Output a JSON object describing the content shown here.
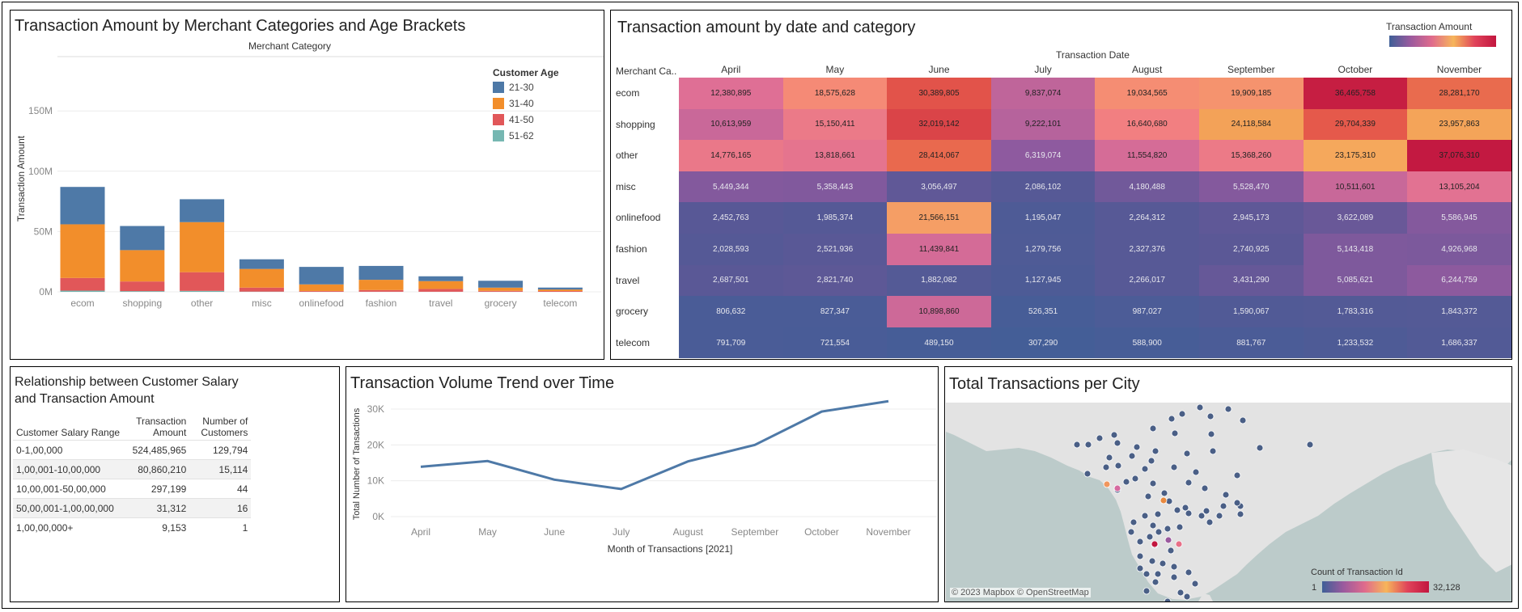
{
  "stacked_chart": {
    "title": "Transaction Amount by Merchant Categories and Age Brackets",
    "col_header": "Merchant Category",
    "ylabel": "Transaction Amount",
    "legend_title": "Customer Age",
    "y_ticks": [
      "0M",
      "50M",
      "100M",
      "150M"
    ]
  },
  "heatmap": {
    "title": "Transaction amount by date and category",
    "col_header": "Transaction Date",
    "row_header": "Merchant Ca..",
    "legend_title": "Transaction Amount",
    "months": [
      "April",
      "May",
      "June",
      "July",
      "August",
      "September",
      "October",
      "November"
    ],
    "rows": [
      {
        "category": "ecom",
        "values": [
          "12,380,895",
          "18,575,628",
          "30,389,805",
          "9,837,074",
          "19,034,565",
          "19,909,185",
          "36,465,758",
          "28,281,170"
        ]
      },
      {
        "category": "shopping",
        "values": [
          "10,613,959",
          "15,150,411",
          "32,019,142",
          "9,222,101",
          "16,640,680",
          "24,118,584",
          "29,704,339",
          "23,957,863"
        ]
      },
      {
        "category": "other",
        "values": [
          "14,776,165",
          "13,818,661",
          "28,414,067",
          "6,319,074",
          "11,554,820",
          "15,368,260",
          "23,175,310",
          "37,076,310"
        ]
      },
      {
        "category": "misc",
        "values": [
          "5,449,344",
          "5,358,443",
          "3,056,497",
          "2,086,102",
          "4,180,488",
          "5,528,470",
          "10,511,601",
          "13,105,204"
        ]
      },
      {
        "category": "onlinefood",
        "values": [
          "2,452,763",
          "1,985,374",
          "21,566,151",
          "1,195,047",
          "2,264,312",
          "2,945,173",
          "3,622,089",
          "5,586,945"
        ]
      },
      {
        "category": "fashion",
        "values": [
          "2,028,593",
          "2,521,936",
          "11,439,841",
          "1,279,756",
          "2,327,376",
          "2,740,925",
          "5,143,418",
          "4,926,968"
        ]
      },
      {
        "category": "travel",
        "values": [
          "2,687,501",
          "2,821,740",
          "1,882,082",
          "1,127,945",
          "2,266,017",
          "3,431,290",
          "5,085,621",
          "6,244,759"
        ]
      },
      {
        "category": "grocery",
        "values": [
          "806,632",
          "827,347",
          "10,898,860",
          "526,351",
          "987,027",
          "1,590,067",
          "1,783,316",
          "1,843,372"
        ]
      },
      {
        "category": "telecom",
        "values": [
          "791,709",
          "721,554",
          "489,150",
          "307,290",
          "588,900",
          "881,767",
          "1,233,532",
          "1,686,337"
        ]
      }
    ],
    "colors": {
      "low": "#3e5f97",
      "mid1": "#9b5a9e",
      "mid2": "#e06b8c",
      "mid3": "#f7845f",
      "high": "#c2163f",
      "yellow": "#f6b55b"
    }
  },
  "salary_table": {
    "title_line1": "Relationship between Customer Salary",
    "title_line2": "and Transaction Amount",
    "headers": {
      "range": "Customer Salary Range",
      "amount_line1": "Transaction",
      "amount_line2": "Amount",
      "customers_line1": "Number of",
      "customers_line2": "Customers"
    },
    "rows": [
      {
        "range": "0-1,00,000",
        "amount": "524,485,965",
        "customers": "129,794"
      },
      {
        "range": "1,00,001-10,00,000",
        "amount": "80,860,210",
        "customers": "15,114"
      },
      {
        "range": "10,00,001-50,00,000",
        "amount": "297,199",
        "customers": "44"
      },
      {
        "range": "50,00,001-1,00,00,000",
        "amount": "31,312",
        "customers": "16"
      },
      {
        "range": "1,00,00,000+",
        "amount": "9,153",
        "customers": "1"
      }
    ]
  },
  "line_chart": {
    "title": "Transaction Volume Trend over Time",
    "xlabel": "Month of Transactions [2021]",
    "ylabel": "Total Number of Tansactions",
    "y_ticks": [
      "0K",
      "10K",
      "20K",
      "30K"
    ]
  },
  "map": {
    "title": "Total Transactions per City",
    "attribution": "© 2023 Mapbox © OpenStreetMap",
    "legend_title": "Count of Transaction Id",
    "legend_min": "1",
    "legend_max": "32,128"
  },
  "chart_data": [
    {
      "type": "bar",
      "stacked": true,
      "title": "Transaction Amount by Merchant Categories and Age Brackets",
      "xlabel": "Merchant Category",
      "ylabel": "Transaction Amount",
      "categories": [
        "ecom",
        "shopping",
        "other",
        "misc",
        "onlinefood",
        "fashion",
        "travel",
        "grocery",
        "telecom"
      ],
      "ylim": [
        0,
        185
      ],
      "units": "M",
      "series": [
        {
          "name": "51-62",
          "color": "#76b7b2",
          "values": [
            1,
            0.6,
            0.8,
            0.2,
            0.1,
            0.1,
            0.1,
            0.1,
            0.05
          ]
        },
        {
          "name": "41-50",
          "color": "#e15759",
          "values": [
            10.5,
            8,
            15.5,
            3.3,
            0.6,
            1.4,
            2.3,
            0.7,
            0.6
          ]
        },
        {
          "name": "31-40",
          "color": "#f28e2b",
          "values": [
            44.5,
            26,
            41.5,
            15.5,
            5.5,
            8.5,
            6.5,
            2.7,
            1.3
          ]
        },
        {
          "name": "21-30",
          "color": "#4e79a7",
          "values": [
            31,
            20,
            19,
            8,
            14.5,
            11.5,
            4,
            5.7,
            1.6
          ]
        }
      ],
      "legend": "top-right",
      "y_axis_max_shown": 150
    },
    {
      "type": "line",
      "title": "Transaction Volume Trend over Time",
      "xlabel": "Month of Transactions [2021]",
      "ylabel": "Total Number of Tansactions",
      "categories": [
        "April",
        "May",
        "June",
        "July",
        "August",
        "September",
        "October",
        "November"
      ],
      "series": [
        {
          "values": [
            13900,
            15500,
            10300,
            7700,
            15400,
            20000,
            29300,
            32200
          ]
        }
      ],
      "ylim": [
        0,
        34000
      ],
      "color": "#4e79a7"
    }
  ]
}
